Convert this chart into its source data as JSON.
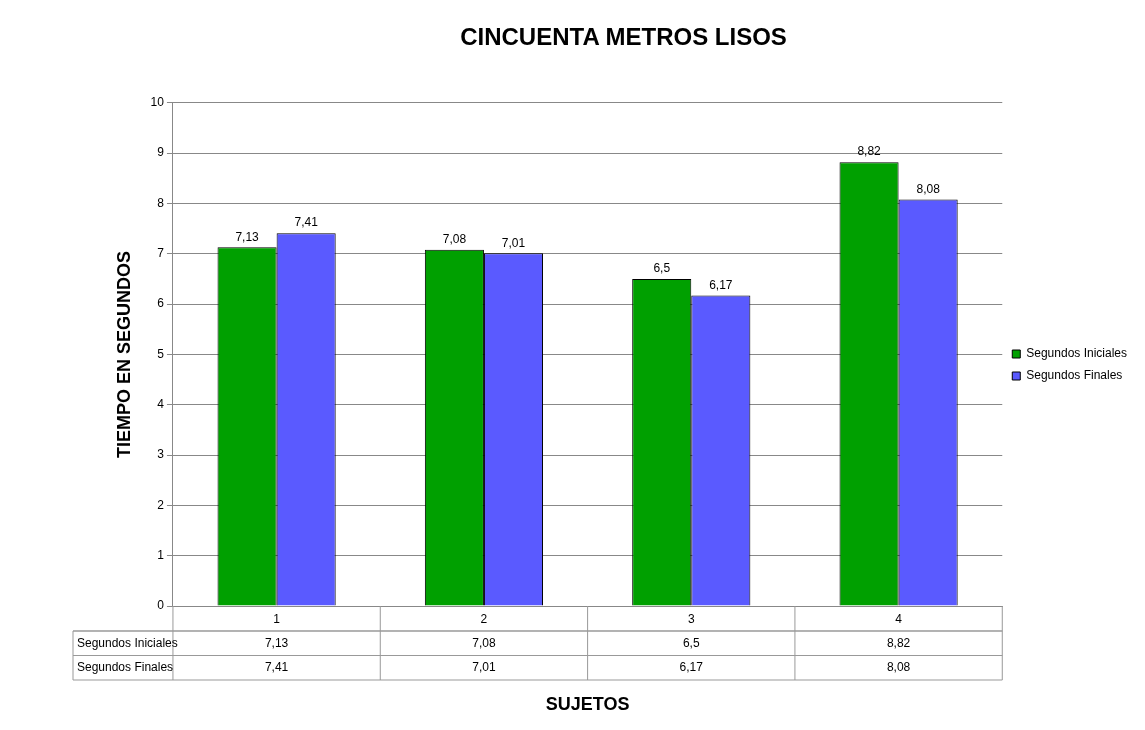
{
  "chart_data": {
    "type": "bar",
    "title": "CINCUENTA METROS LISOS",
    "xlabel": "SUJETOS",
    "ylabel": "TIEMPO EN SEGUNDOS",
    "categories": [
      "1",
      "2",
      "3",
      "4"
    ],
    "series": [
      {
        "name": "Segundos Iniciales",
        "color": "#00a000",
        "values": [
          7.13,
          7.08,
          6.5,
          8.82
        ],
        "value_labels": [
          "7,13",
          "7,08",
          "6,5",
          "8,82"
        ]
      },
      {
        "name": "Segundos Finales",
        "color": "#5a5aff",
        "values": [
          7.41,
          7.01,
          6.17,
          8.08
        ],
        "value_labels": [
          "7,41",
          "7,01",
          "6,17",
          "8,08"
        ]
      }
    ],
    "ylim": [
      0,
      10
    ],
    "yticks": [
      0,
      1,
      2,
      3,
      4,
      5,
      6,
      7,
      8,
      9,
      10
    ],
    "grid": "y",
    "legend": "right"
  }
}
